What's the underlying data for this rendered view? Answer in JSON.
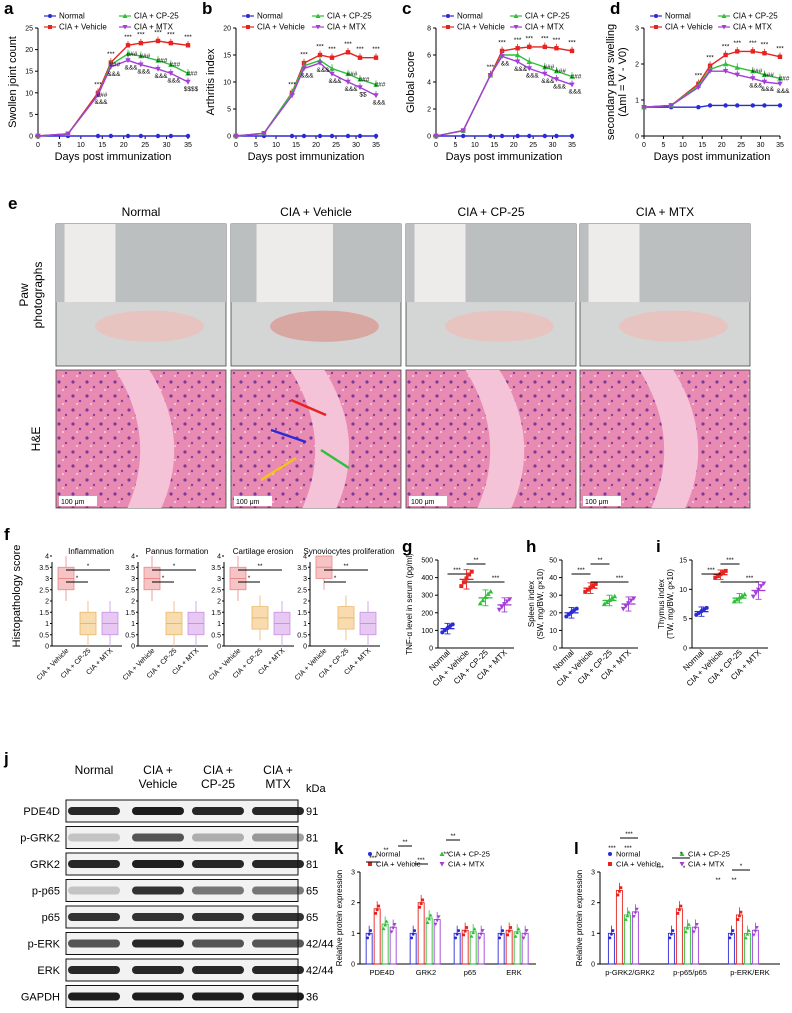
{
  "panels": {
    "a": {
      "letter": "a",
      "ylabel": "Swollen joint count",
      "xlabel": "Days post immunization",
      "xticks": [
        "0",
        "5",
        "10",
        "15",
        "20",
        "25",
        "30",
        "35"
      ],
      "yticks": [
        "0",
        "5",
        "10",
        "15",
        "20",
        "25"
      ],
      "sig_top": [
        "***",
        "***",
        "***",
        "***",
        "***",
        "***",
        "***",
        "***"
      ],
      "sig_mid": [
        "###",
        "###",
        "###",
        "###",
        "###",
        "###",
        "###"
      ],
      "sig_low": [
        "&&",
        "&&&",
        "&&&",
        "&&&",
        "&&&",
        "&&&",
        "&&&",
        "$$$$"
      ]
    },
    "b": {
      "letter": "b",
      "ylabel": "Arthritis index",
      "xlabel": "Days post immunization",
      "xticks": [
        "0",
        "5",
        "10",
        "15",
        "20",
        "25",
        "30",
        "35"
      ],
      "yticks": [
        "0",
        "5",
        "10",
        "15",
        "20"
      ],
      "sig_top": [
        "***",
        "***",
        "***",
        "***",
        "***",
        "***",
        "***",
        "***"
      ],
      "sig_mid": [
        "###",
        "###",
        "###"
      ],
      "sig_low": [
        "&&&",
        "&&&",
        "&&&",
        "&&&",
        "$$",
        "&&&"
      ]
    },
    "c": {
      "letter": "c",
      "ylabel": "Global score",
      "xlabel": "Days post immunization",
      "xticks": [
        "0",
        "5",
        "10",
        "15",
        "20",
        "25",
        "30",
        "35"
      ],
      "yticks": [
        "0",
        "2",
        "4",
        "6",
        "8"
      ],
      "sig_top": [
        "***",
        "***",
        "***",
        "***",
        "***",
        "***",
        "***",
        "***"
      ],
      "sig_mid": [
        "###",
        "###",
        "###"
      ],
      "sig_low": [
        "&&",
        "&&&",
        "&&&",
        "&&&",
        "&&&",
        "&&&"
      ]
    },
    "d": {
      "letter": "d",
      "ylabel": "secondary paw swelling",
      "ylabel2": "(Δml = V - V0)",
      "xlabel": "Days post immunization",
      "xticks": [
        "0",
        "5",
        "10",
        "15",
        "20",
        "25",
        "30",
        "35"
      ],
      "yticks": [
        "0",
        "1",
        "2",
        "3"
      ],
      "sig_top": [
        "***",
        "***",
        "***",
        "***",
        "***",
        "***",
        "***"
      ],
      "sig_mid": [
        "###",
        "###",
        "###"
      ],
      "sig_low": [
        "&&&",
        "&&&",
        "&&&"
      ]
    },
    "e": {
      "letter": "e",
      "columns": [
        "Normal",
        "CIA + Vehicle",
        "CIA + CP-25",
        "CIA + MTX"
      ],
      "row_labels": [
        "Paw\nphotographs",
        "H&E"
      ],
      "row1_a": "Paw",
      "row1_b": "photographs",
      "row2": "H&E",
      "scale_bar": "100 μm"
    },
    "f": {
      "letter": "f",
      "ylabel": "Histopathology score",
      "subtitles": [
        "Inflammation",
        "Pannus formation",
        "Cartilage erosion",
        "Synoviocytes proliferation"
      ],
      "groups": [
        "CIA + Vehicle",
        "CIA + CP-25",
        "CIA + MTX"
      ],
      "yticks": [
        "0",
        "0.5",
        "1",
        "1.5",
        "2",
        "2.5",
        "3",
        "3.5",
        "4"
      ],
      "sig": [
        [
          "*",
          "*"
        ],
        [
          "*",
          "*"
        ],
        [
          "*",
          "**"
        ],
        [
          "*",
          "**"
        ]
      ]
    },
    "g": {
      "letter": "g",
      "ylabel": "TNF-α level in serum (pg/ml)",
      "groups": [
        "Normal",
        "CIA + Vehicle",
        "CIA + CP-25",
        "CIA + MTX"
      ],
      "yticks": [
        "0",
        "100",
        "200",
        "300",
        "400",
        "500"
      ],
      "sig": [
        "***",
        "**",
        "***"
      ]
    },
    "h": {
      "letter": "h",
      "ylabel": "Spleen index",
      "ylabel2": "(SW, mg/BW, g×10)",
      "groups": [
        "Normal",
        "CIA + Vehicle",
        "CIA + CP-25",
        "CIA + MTX"
      ],
      "yticks": [
        "0",
        "10",
        "20",
        "30",
        "40",
        "50"
      ],
      "sig": [
        "***",
        "**",
        "***"
      ]
    },
    "i": {
      "letter": "i",
      "ylabel": "Thymus index",
      "ylabel2": "(TW, mg/BW, g×10)",
      "groups": [
        "Normal",
        "CIA + Vehicle",
        "CIA + CP-25",
        "CIA + MTX"
      ],
      "yticks": [
        "0",
        "5",
        "10",
        "15"
      ],
      "sig": [
        "***",
        "***",
        "***"
      ]
    },
    "j": {
      "letter": "j",
      "col_heads": [
        [
          "Normal",
          ""
        ],
        [
          "CIA +",
          "Vehicle"
        ],
        [
          "CIA +",
          "CP-25"
        ],
        [
          "CIA +",
          "MTX"
        ]
      ],
      "kda": "kDa",
      "rows": [
        {
          "name": "PDE4D",
          "kda": "91"
        },
        {
          "name": "p-GRK2",
          "kda": "81"
        },
        {
          "name": "GRK2",
          "kda": "81"
        },
        {
          "name": "p-p65",
          "kda": "65"
        },
        {
          "name": "p65",
          "kda": "65"
        },
        {
          "name": "p-ERK",
          "kda": "42/44"
        },
        {
          "name": "ERK",
          "kda": "42/44"
        },
        {
          "name": "GAPDH",
          "kda": "36"
        }
      ]
    },
    "k": {
      "letter": "k",
      "ylabel": "Relative protein expression",
      "categories": [
        "PDE4D",
        "GRK2",
        "p65",
        "ERK"
      ],
      "yticks": [
        "0",
        "1",
        "2",
        "3"
      ],
      "sig_pairs": [
        [
          "***",
          "**"
        ],
        [
          "**"
        ],
        [
          "***",
          "**"
        ],
        [
          "**"
        ]
      ]
    },
    "l": {
      "letter": "l",
      "ylabel": "Relative protein expression",
      "categories": [
        "p-GRK2/GRK2",
        "p-p65/p65",
        "p-ERK/ERK"
      ],
      "yticks": [
        "0",
        "1",
        "2",
        "3"
      ],
      "sig_top": [
        "***",
        "*",
        "*"
      ],
      "sig_low": [
        "***",
        "***",
        "***",
        "*",
        "**",
        "**"
      ]
    }
  },
  "legend": {
    "normal": "Normal",
    "vehicle": "CIA + Vehicle",
    "cp25": "CIA + CP-25",
    "mtx": "CIA + MTX"
  },
  "colors": {
    "normal": "#2b2bd6",
    "vehicle": "#e8231f",
    "cp25": "#2fbf3a",
    "mtx": "#a33fd8",
    "he_pink": "#e9679b",
    "he_light": "#f5c3d8"
  },
  "chart_data": [
    {
      "type": "line",
      "panel": "a",
      "x": [
        0,
        7,
        14,
        17,
        21,
        24,
        28,
        31,
        35
      ],
      "xlim": [
        0,
        35
      ],
      "ylim": [
        0,
        25
      ],
      "series": [
        {
          "name": "Normal",
          "values": [
            0,
            0,
            0,
            0,
            0,
            0,
            0,
            0,
            0
          ]
        },
        {
          "name": "CIA + Vehicle",
          "values": [
            0,
            0.5,
            10,
            17,
            21,
            21.5,
            22,
            21.5,
            21
          ]
        },
        {
          "name": "CIA + CP-25",
          "values": [
            0,
            0.5,
            9.5,
            16.5,
            19,
            18.5,
            17.5,
            16.5,
            14.5
          ]
        },
        {
          "name": "CIA + MTX",
          "values": [
            0,
            0.5,
            9.5,
            16,
            17.5,
            16.5,
            15.5,
            14.5,
            12.5
          ]
        }
      ]
    },
    {
      "type": "line",
      "panel": "b",
      "x": [
        0,
        7,
        14,
        17,
        21,
        24,
        28,
        31,
        35
      ],
      "xlim": [
        0,
        35
      ],
      "ylim": [
        0,
        20
      ],
      "series": [
        {
          "name": "Normal",
          "values": [
            0,
            0,
            0,
            0,
            0,
            0,
            0,
            0,
            0
          ]
        },
        {
          "name": "CIA + Vehicle",
          "values": [
            0,
            0.5,
            8,
            13.5,
            15,
            14.5,
            15.5,
            14.5,
            14.5
          ]
        },
        {
          "name": "CIA + CP-25",
          "values": [
            0,
            0.5,
            8,
            13,
            14,
            12.5,
            11.5,
            10.5,
            9.5
          ]
        },
        {
          "name": "CIA + MTX",
          "values": [
            0,
            0.5,
            7.5,
            12.5,
            13.5,
            11.5,
            10,
            9,
            7.5
          ]
        }
      ]
    },
    {
      "type": "line",
      "panel": "c",
      "x": [
        0,
        7,
        14,
        17,
        21,
        24,
        28,
        31,
        35
      ],
      "xlim": [
        0,
        35
      ],
      "ylim": [
        0,
        8
      ],
      "series": [
        {
          "name": "Normal",
          "values": [
            0,
            0,
            0,
            0,
            0,
            0,
            0,
            0,
            0
          ]
        },
        {
          "name": "CIA + Vehicle",
          "values": [
            0,
            0.4,
            4.5,
            6.3,
            6.5,
            6.6,
            6.6,
            6.5,
            6.3
          ]
        },
        {
          "name": "CIA + CP-25",
          "values": [
            0,
            0.4,
            4.5,
            6,
            6,
            5.5,
            5.1,
            4.8,
            4.4
          ]
        },
        {
          "name": "CIA + MTX",
          "values": [
            0,
            0.4,
            4.5,
            5.9,
            5.5,
            5,
            4.6,
            4.2,
            3.8
          ]
        }
      ]
    },
    {
      "type": "line",
      "panel": "d",
      "x": [
        0,
        7,
        14,
        17,
        21,
        24,
        28,
        31,
        35
      ],
      "xlim": [
        0,
        35
      ],
      "ylim": [
        0,
        3
      ],
      "series": [
        {
          "name": "Normal",
          "values": [
            0.8,
            0.8,
            0.8,
            0.85,
            0.85,
            0.85,
            0.85,
            0.85,
            0.85
          ]
        },
        {
          "name": "CIA + Vehicle",
          "values": [
            0.8,
            0.85,
            1.45,
            1.95,
            2.25,
            2.35,
            2.35,
            2.3,
            2.2
          ]
        },
        {
          "name": "CIA + CP-25",
          "values": [
            0.8,
            0.85,
            1.4,
            1.85,
            2,
            1.9,
            1.8,
            1.7,
            1.6
          ]
        },
        {
          "name": "CIA + MTX",
          "values": [
            0.8,
            0.85,
            1.35,
            1.8,
            1.8,
            1.7,
            1.6,
            1.5,
            1.45
          ]
        }
      ]
    },
    {
      "type": "bar",
      "panel": "g",
      "categories": [
        "Normal",
        "CIA + Vehicle",
        "CIA + CP-25",
        "CIA + MTX"
      ],
      "values": [
        110,
        390,
        285,
        245
      ],
      "errors": [
        30,
        55,
        45,
        40
      ],
      "ylim": [
        0,
        500
      ]
    },
    {
      "type": "bar",
      "panel": "h",
      "categories": [
        "Normal",
        "CIA + Vehicle",
        "CIA + CP-25",
        "CIA + MTX"
      ],
      "values": [
        20,
        34,
        27,
        25
      ],
      "errors": [
        3,
        3,
        3,
        4
      ],
      "ylim": [
        0,
        50
      ]
    },
    {
      "type": "bar",
      "panel": "i",
      "categories": [
        "Normal",
        "CIA + Vehicle",
        "CIA + CP-25",
        "CIA + MTX"
      ],
      "values": [
        6.2,
        12.5,
        8.5,
        9.8
      ],
      "errors": [
        0.8,
        0.8,
        0.8,
        1.5
      ],
      "ylim": [
        0,
        15
      ]
    },
    {
      "type": "bar",
      "panel": "k",
      "categories": [
        "PDE4D",
        "GRK2",
        "p65",
        "ERK"
      ],
      "series": [
        {
          "name": "Normal",
          "values": [
            1,
            1,
            1,
            1
          ]
        },
        {
          "name": "CIA + Vehicle",
          "values": [
            1.8,
            2,
            1.1,
            1.1
          ]
        },
        {
          "name": "CIA + CP-25",
          "values": [
            1.3,
            1.5,
            1.05,
            1.05
          ]
        },
        {
          "name": "CIA + MTX",
          "values": [
            1.2,
            1.45,
            1.0,
            1.0
          ]
        }
      ],
      "ylim": [
        0,
        3
      ]
    },
    {
      "type": "bar",
      "panel": "l",
      "categories": [
        "p-GRK2/GRK2",
        "p-p65/p65",
        "p-ERK/ERK"
      ],
      "series": [
        {
          "name": "Normal",
          "values": [
            1,
            1,
            1
          ]
        },
        {
          "name": "CIA + Vehicle",
          "values": [
            2.4,
            1.8,
            1.6
          ]
        },
        {
          "name": "CIA + CP-25",
          "values": [
            1.6,
            1.2,
            1.0
          ]
        },
        {
          "name": "CIA + MTX",
          "values": [
            1.7,
            1.2,
            1.1
          ]
        }
      ],
      "ylim": [
        0,
        3
      ]
    },
    {
      "type": "bar",
      "panel": "f",
      "categories": [
        "Inflammation",
        "Pannus formation",
        "Cartilage erosion",
        "Synoviocytes proliferation"
      ],
      "series": [
        {
          "name": "CIA + Vehicle",
          "values": [
            3,
            3,
            3,
            3.5
          ]
        },
        {
          "name": "CIA + CP-25",
          "values": [
            1,
            1,
            1.25,
            1.25
          ]
        },
        {
          "name": "CIA + MTX",
          "values": [
            1,
            1,
            1,
            1
          ]
        }
      ],
      "ylim": [
        0,
        4
      ]
    }
  ]
}
